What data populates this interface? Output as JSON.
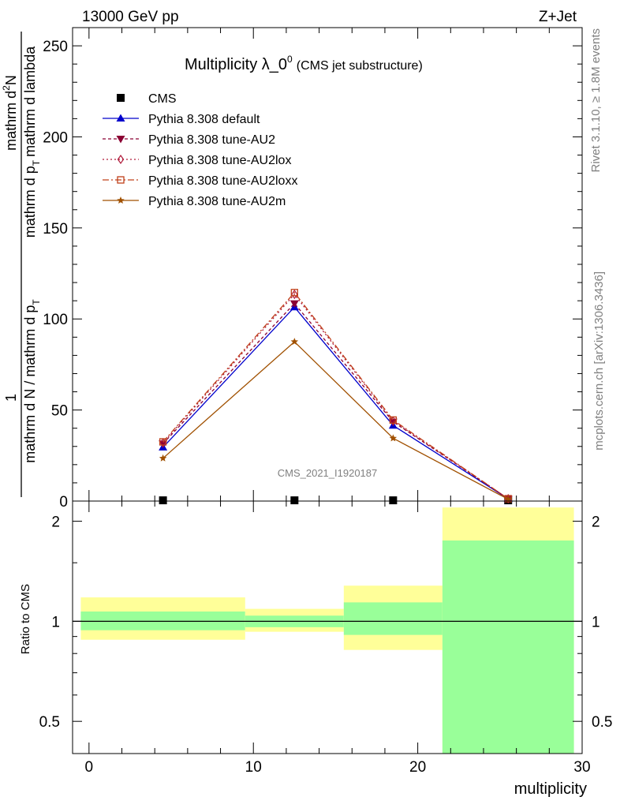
{
  "header": {
    "energy": "13000 GeV pp",
    "process": "Z+Jet"
  },
  "side_labels": {
    "rivet": "Rivet 3.1.10, ≥ 1.8M events",
    "mcplots": "mcplots.cern.ch [arXiv:1306.3436]"
  },
  "watermark": "CMS_2021_I1920187",
  "colors": {
    "cms": "#000000",
    "default": "#0000cc",
    "au2": "#8b0033",
    "au2lox": "#b01a3a",
    "au2loxx": "#c0401a",
    "au2m": "#a05000",
    "band_yellow": "#ffff99",
    "band_green": "#99ff99"
  },
  "chart_data": [
    {
      "type": "line",
      "title": "Multiplicity λ_0",
      "title_sup": "0",
      "title_suffix": "(CMS jet substructure)",
      "ylabel_top": "1",
      "ylabel_mid": "mathrm d N / mathrm d p",
      "ylabel_mid_sub": "T",
      "ylabel_mid2": "mathrm d lambda",
      "ylabel_num": "mathrm d",
      "ylabel_num_sup": "2",
      "ylabel_num2": "N",
      "ylabel_den": "mathrm d N / mathrm d p",
      "ylabel_den_sub": "T",
      "ylabel_den2": "mathrm d p",
      "ylabel_den2_sub": "T",
      "ylabel_den3": "mathrm d lambda",
      "xlim": [
        -1,
        30
      ],
      "ylim": [
        0,
        260
      ],
      "yticks": [
        0,
        50,
        100,
        150,
        200,
        250
      ],
      "legend_position": "top-left",
      "x": [
        4.5,
        12.5,
        18.5,
        25.5
      ],
      "series": [
        {
          "name": "CMS",
          "key": "cms",
          "marker": "square",
          "values": [
            0.4,
            0.4,
            0.4,
            0.4
          ]
        },
        {
          "name": "Pythia 8.308 default",
          "key": "default",
          "marker": "triangle-up",
          "dash": "",
          "values": [
            29.5,
            106.5,
            41.5,
            1.2
          ]
        },
        {
          "name": "Pythia 8.308 tune-AU2",
          "key": "au2",
          "marker": "triangle-down",
          "dash": "4,3",
          "values": [
            31.5,
            108.5,
            43.5,
            1.3
          ]
        },
        {
          "name": "Pythia 8.308 tune-AU2lox",
          "key": "au2lox",
          "marker": "diamond",
          "dash": "2,3",
          "values": [
            32.0,
            113.5,
            44.0,
            1.3
          ]
        },
        {
          "name": "Pythia 8.308 tune-AU2loxx",
          "key": "au2loxx",
          "marker": "open-square",
          "dash": "8,3,2,3",
          "values": [
            32.5,
            114.5,
            44.5,
            1.3
          ]
        },
        {
          "name": "Pythia 8.308 tune-AU2m",
          "key": "au2m",
          "marker": "star",
          "dash": "",
          "values": [
            23.5,
            87.5,
            34.5,
            1.0
          ]
        }
      ]
    },
    {
      "type": "area",
      "ylabel": "Ratio to CMS",
      "xlabel": "multiplicity",
      "xlim": [
        -1,
        30
      ],
      "ylim": [
        0.4,
        2.3
      ],
      "yscale": "log",
      "yticks": [
        0.5,
        1,
        2
      ],
      "xticks": [
        0,
        10,
        20,
        30
      ],
      "reference_line": 1,
      "bins": [
        {
          "x_range": [
            -0.5,
            9.5
          ],
          "yellow": [
            0.88,
            1.18
          ],
          "green": [
            0.94,
            1.07
          ]
        },
        {
          "x_range": [
            9.5,
            15.5
          ],
          "yellow": [
            0.93,
            1.09
          ],
          "green": [
            0.96,
            1.04
          ]
        },
        {
          "x_range": [
            15.5,
            21.5
          ],
          "yellow": [
            0.82,
            1.28
          ],
          "green": [
            0.91,
            1.14
          ]
        },
        {
          "x_range": [
            21.5,
            29.5
          ],
          "yellow": [
            0.4,
            2.2
          ],
          "green": [
            0.4,
            1.75
          ]
        }
      ]
    }
  ]
}
